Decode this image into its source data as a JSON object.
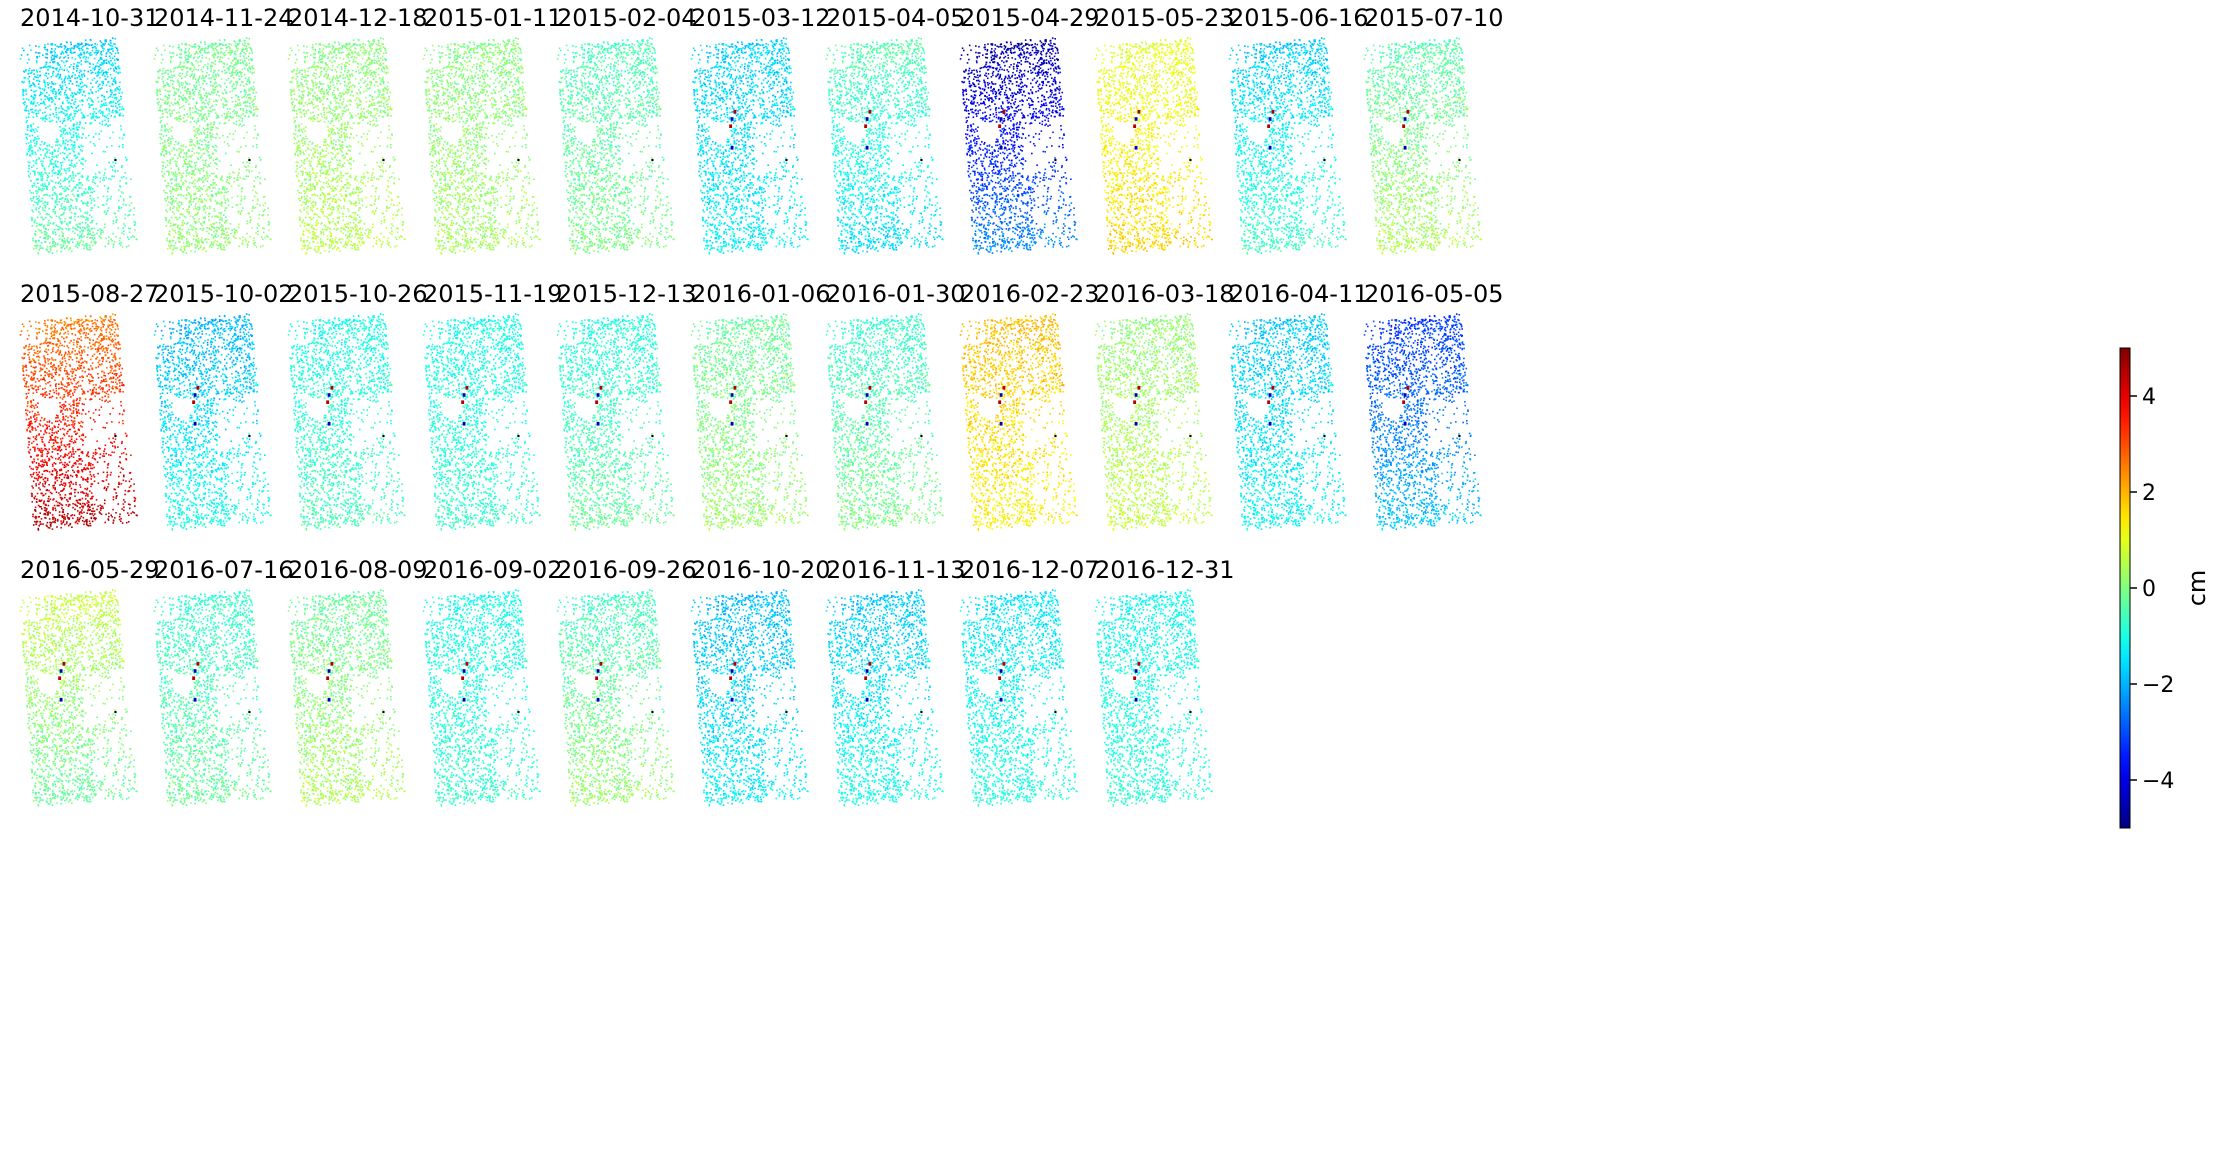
{
  "chart_data": {
    "type": "heatmap",
    "description_of_values": "mean cumulative displacement per date panel",
    "panels": [
      {
        "title": "2014-10-31",
        "mean": -1.0,
        "ramp": 0.8,
        "hot": false
      },
      {
        "title": "2014-11-24",
        "mean": 0.0,
        "ramp": 0.2,
        "hot": false
      },
      {
        "title": "2014-12-18",
        "mean": 0.3,
        "ramp": 0.3,
        "hot": false
      },
      {
        "title": "2015-01-11",
        "mean": 0.2,
        "ramp": 0.2,
        "hot": false
      },
      {
        "title": "2015-02-04",
        "mean": -0.3,
        "ramp": 0.3,
        "hot": false
      },
      {
        "title": "2015-03-12",
        "mean": -1.5,
        "ramp": 0.2,
        "hot": true
      },
      {
        "title": "2015-04-05",
        "mean": -1.0,
        "ramp": -0.6,
        "hot": true
      },
      {
        "title": "2015-04-29",
        "mean": -3.5,
        "ramp": 1.2,
        "hot": true
      },
      {
        "title": "2015-05-23",
        "mean": 1.3,
        "ramp": 0.4,
        "hot": true
      },
      {
        "title": "2015-06-16",
        "mean": -1.2,
        "ramp": 0.6,
        "hot": true
      },
      {
        "title": "2015-07-10",
        "mean": 0.0,
        "ramp": 0.5,
        "hot": true
      },
      {
        "title": "2015-08-27",
        "mean": 3.5,
        "ramp": 1.0,
        "hot": false
      },
      {
        "title": "2015-10-02",
        "mean": -1.5,
        "ramp": 0.5,
        "hot": true
      },
      {
        "title": "2015-10-26",
        "mean": -0.8,
        "ramp": 0.3,
        "hot": true
      },
      {
        "title": "2015-11-19",
        "mean": -0.9,
        "ramp": 0.2,
        "hot": true
      },
      {
        "title": "2015-12-13",
        "mean": -0.6,
        "ramp": 0.4,
        "hot": true
      },
      {
        "title": "2016-01-06",
        "mean": 0.0,
        "ramp": 0.3,
        "hot": true
      },
      {
        "title": "2016-01-30",
        "mean": -0.4,
        "ramp": 0.4,
        "hot": true
      },
      {
        "title": "2016-02-23",
        "mean": 1.6,
        "ramp": -0.3,
        "hot": true
      },
      {
        "title": "2016-03-18",
        "mean": 0.4,
        "ramp": 0.3,
        "hot": true
      },
      {
        "title": "2016-04-11",
        "mean": -1.5,
        "ramp": 0.3,
        "hot": true
      },
      {
        "title": "2016-05-05",
        "mean": -2.5,
        "ramp": 0.8,
        "hot": true
      },
      {
        "title": "2016-05-29",
        "mean": 0.2,
        "ramp": -0.5,
        "hot": true
      },
      {
        "title": "2016-07-16",
        "mean": -0.5,
        "ramp": 0.3,
        "hot": true
      },
      {
        "title": "2016-08-09",
        "mean": 0.1,
        "ramp": 0.4,
        "hot": true
      },
      {
        "title": "2016-09-02",
        "mean": -0.9,
        "ramp": 0.2,
        "hot": true
      },
      {
        "title": "2016-09-26",
        "mean": -0.2,
        "ramp": 0.5,
        "hot": true
      },
      {
        "title": "2016-10-20",
        "mean": -1.6,
        "ramp": 0.3,
        "hot": true
      },
      {
        "title": "2016-11-13",
        "mean": -1.4,
        "ramp": 0.4,
        "hot": true
      },
      {
        "title": "2016-12-07",
        "mean": -1.2,
        "ramp": 0.3,
        "hot": true
      },
      {
        "title": "2016-12-31",
        "mean": -1.0,
        "ramp": 0.2,
        "hot": true
      }
    ],
    "colormap": "jet",
    "vmin": -5,
    "vmax": 5,
    "colorbar": {
      "label": "cm",
      "ticks": [
        4,
        2,
        0,
        -2,
        -4
      ],
      "tick_labels": [
        "4",
        "2",
        "0",
        "−2",
        "−4"
      ],
      "placement": "right"
    },
    "grid": false,
    "axes": "off"
  }
}
